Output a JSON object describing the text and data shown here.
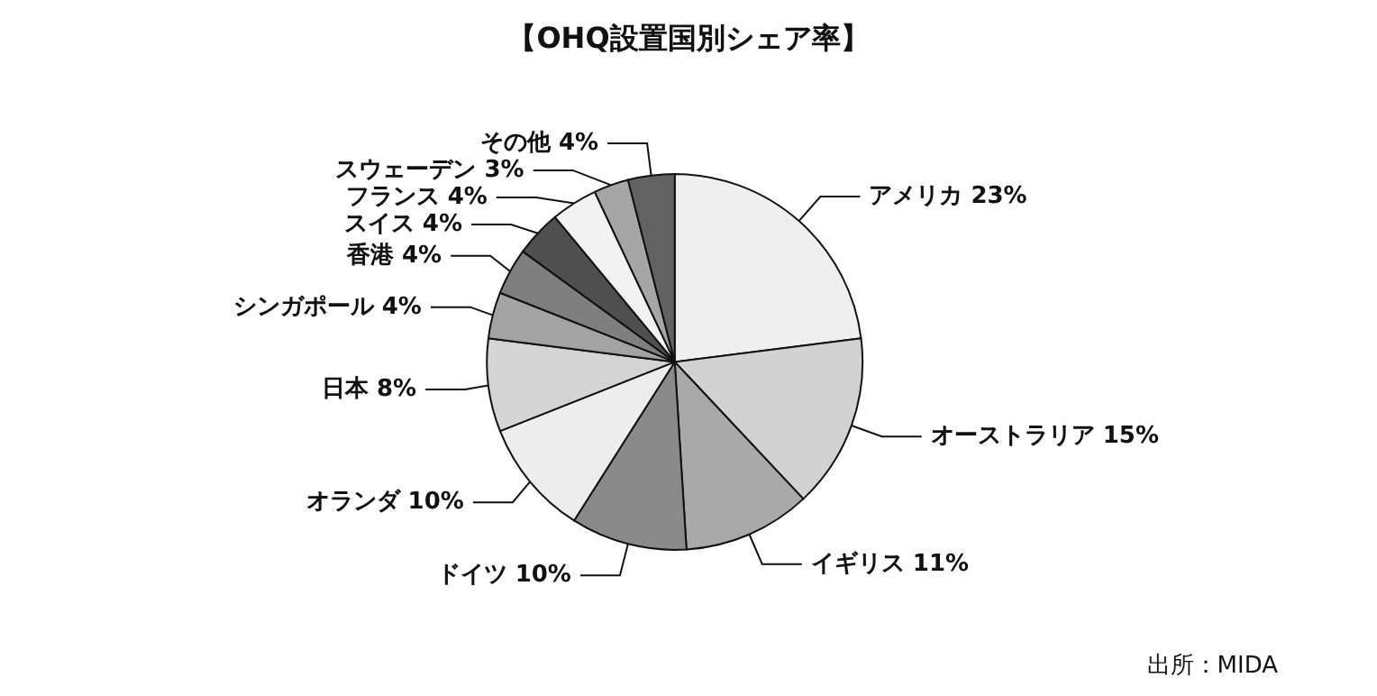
{
  "chart_data": {
    "type": "pie",
    "title": "【OHQ設置国別シェア率】",
    "categories": [
      "アメリカ",
      "オーストラリア",
      "イギリス",
      "ドイツ",
      "オランダ",
      "日本",
      "シンガポール",
      "香港",
      "スイス",
      "フランス",
      "スウェーデン",
      "その他"
    ],
    "values": [
      23,
      15,
      11,
      10,
      10,
      8,
      4,
      4,
      4,
      4,
      3,
      4
    ],
    "value_labels": [
      "23%",
      "15%",
      "11%",
      "10%",
      "10%",
      "8%",
      "4%",
      "4%",
      "4%",
      "4%",
      "3%",
      "4%"
    ],
    "colors": [
      "#efefef",
      "#d2d2d2",
      "#a9a9a9",
      "#8a8a8a",
      "#ededed",
      "#d4d4d4",
      "#a3a3a3",
      "#7f7f7f",
      "#4f4f4f",
      "#f2f2f2",
      "#a6a6a6",
      "#626262"
    ],
    "annotations": [
      "出所：MIDA"
    ],
    "legend": false
  }
}
